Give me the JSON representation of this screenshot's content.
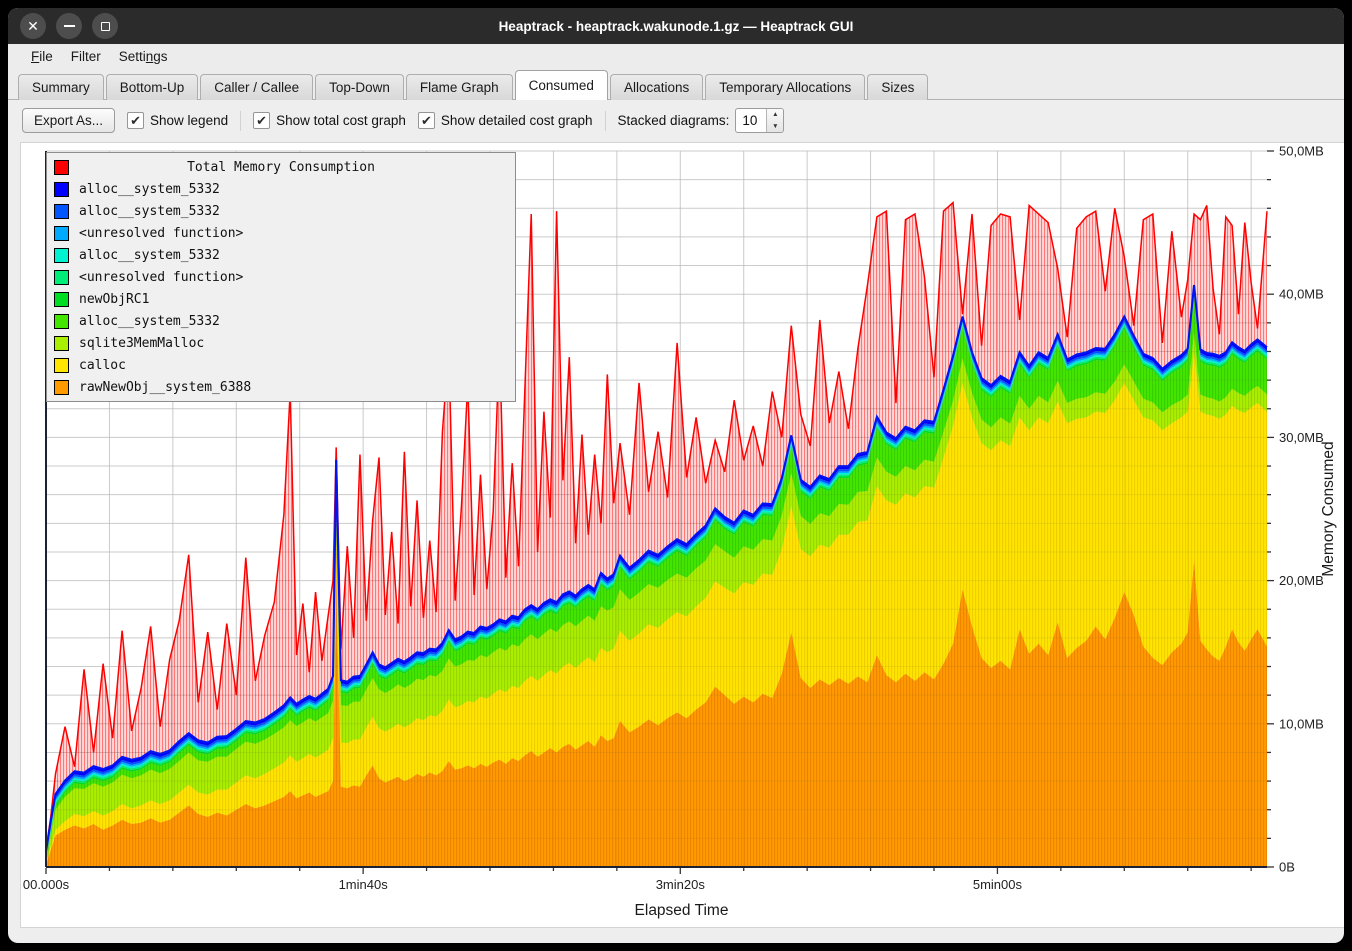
{
  "window": {
    "title": "Heaptrack - heaptrack.wakunode.1.gz — Heaptrack GUI",
    "controls": {
      "close": "close",
      "minimize": "minimize",
      "maximize": "maximize"
    }
  },
  "menu": {
    "items": [
      {
        "label": "File",
        "u": 0
      },
      {
        "label": "Filter",
        "u": -1
      },
      {
        "label": "Settings",
        "u": 5
      }
    ]
  },
  "tabs": [
    {
      "label": "Summary",
      "active": false
    },
    {
      "label": "Bottom-Up",
      "active": false
    },
    {
      "label": "Caller / Callee",
      "active": false
    },
    {
      "label": "Top-Down",
      "active": false
    },
    {
      "label": "Flame Graph",
      "active": false
    },
    {
      "label": "Consumed",
      "active": true
    },
    {
      "label": "Allocations",
      "active": false
    },
    {
      "label": "Temporary Allocations",
      "active": false
    },
    {
      "label": "Sizes",
      "active": false
    }
  ],
  "toolbar": {
    "export_label": "Export As...",
    "checkboxes": [
      {
        "label": "Show legend",
        "checked": true
      },
      {
        "label": "Show total cost graph",
        "checked": true
      },
      {
        "label": "Show detailed cost graph",
        "checked": true
      }
    ],
    "stacked_label": "Stacked diagrams:",
    "stacked_value": "10"
  },
  "chart_data": {
    "type": "area",
    "title": "Total Memory Consumption",
    "xlabel": "Elapsed Time",
    "ylabel": "Memory Consumed",
    "xlim": [
      0,
      385
    ],
    "ylim": [
      0,
      50
    ],
    "minor_x_step": 20,
    "minor_y_step": 2,
    "grid": true,
    "legend_position": "top-left",
    "x_ticks": [
      {
        "t": 0,
        "label": "00.000s"
      },
      {
        "t": 100,
        "label": "1min40s"
      },
      {
        "t": 200,
        "label": "3min20s"
      },
      {
        "t": 300,
        "label": "5min00s"
      }
    ],
    "y_ticks": [
      {
        "v": 0,
        "label": "0B"
      },
      {
        "v": 10,
        "label": "10,0MB"
      },
      {
        "v": 20,
        "label": "20,0MB"
      },
      {
        "v": 30,
        "label": "30,0MB"
      },
      {
        "v": 40,
        "label": "40,0MB"
      },
      {
        "v": 50,
        "label": "50,0MB"
      }
    ],
    "legend": [
      {
        "label": "Total Memory Consumption",
        "color": "#ff0000"
      },
      {
        "label": "alloc__system_5332",
        "color": "#0000ff"
      },
      {
        "label": "alloc__system_5332",
        "color": "#0055ff"
      },
      {
        "label": "<unresolved function>",
        "color": "#00aaff"
      },
      {
        "label": "alloc__system_5332",
        "color": "#00f2d0"
      },
      {
        "label": "<unresolved function>",
        "color": "#00ee77"
      },
      {
        "label": "newObjRC1",
        "color": "#00dd22"
      },
      {
        "label": "alloc__system_5332",
        "color": "#44e600"
      },
      {
        "label": "sqlite3MemMalloc",
        "color": "#aaee00"
      },
      {
        "label": "calloc",
        "color": "#ffe500"
      },
      {
        "label": "rawNewObj__system_6388",
        "color": "#ff9a00"
      }
    ],
    "t": [
      0,
      1.5,
      3,
      6,
      9,
      12,
      15,
      18,
      21,
      24,
      27,
      30,
      33,
      36,
      39,
      42,
      45,
      48,
      51,
      54,
      57,
      60,
      63,
      66,
      69,
      72,
      75,
      77,
      79,
      81,
      83,
      85,
      87,
      89,
      90.5,
      91.5,
      93,
      95,
      97,
      99,
      101,
      103,
      105,
      107,
      109,
      111,
      113,
      115,
      117,
      119,
      121,
      123,
      125,
      127,
      129,
      131,
      133,
      135,
      137,
      139,
      141,
      143,
      145,
      147,
      149,
      151,
      153,
      155,
      157,
      159,
      161,
      163,
      165,
      167,
      169,
      171,
      173,
      175,
      177,
      179,
      181,
      184,
      187,
      190,
      193,
      196,
      199,
      202,
      205,
      208,
      211,
      214,
      217,
      220,
      223,
      226,
      229,
      232,
      235,
      238,
      241,
      244,
      247,
      250,
      253,
      256,
      259,
      262,
      265,
      268,
      271,
      274,
      277,
      280,
      283,
      286,
      289,
      292,
      295,
      298,
      301,
      304,
      307,
      310,
      313,
      316,
      319,
      322,
      325,
      328,
      331,
      334,
      337,
      340,
      343,
      346,
      349,
      352,
      355,
      358,
      360,
      362,
      364,
      366,
      368,
      370,
      372,
      374,
      376,
      378,
      380,
      382,
      385
    ],
    "bands": [
      {
        "name": "rawNewObj__system_6388",
        "color": "#ff9a00",
        "stripe": "#ee8500",
        "values": [
          0.15,
          1.2,
          2.2,
          2.6,
          2.9,
          2.7,
          3.0,
          2.6,
          2.9,
          3.3,
          3.0,
          3.1,
          3.4,
          3.1,
          3.3,
          3.8,
          4.3,
          3.7,
          3.5,
          3.8,
          3.6,
          4.0,
          4.4,
          4.1,
          4.3,
          4.6,
          4.9,
          5.3,
          4.8,
          5.0,
          5.2,
          4.9,
          5.1,
          5.3,
          6.0,
          20.0,
          5.6,
          5.5,
          5.7,
          5.6,
          6.4,
          7.1,
          6.2,
          5.9,
          6.1,
          6.3,
          6.0,
          6.2,
          6.5,
          6.3,
          6.6,
          6.4,
          6.7,
          7.4,
          6.8,
          6.9,
          7.1,
          6.9,
          7.2,
          7.0,
          7.3,
          7.5,
          7.2,
          7.6,
          7.4,
          7.8,
          8.1,
          7.7,
          8.0,
          8.3,
          8.0,
          8.4,
          8.6,
          8.2,
          8.5,
          8.8,
          8.4,
          9.2,
          8.8,
          9.0,
          10.2,
          9.4,
          9.8,
          10.3,
          9.9,
          10.4,
          10.8,
          10.4,
          11.0,
          11.5,
          12.6,
          12.0,
          11.4,
          11.9,
          11.5,
          12.1,
          11.8,
          13.5,
          16.4,
          13.2,
          12.5,
          13.1,
          12.7,
          13.2,
          12.8,
          13.3,
          12.9,
          14.8,
          13.4,
          12.9,
          13.5,
          13.0,
          13.6,
          13.1,
          14.2,
          15.6,
          19.4,
          16.8,
          14.6,
          13.9,
          14.4,
          13.8,
          16.6,
          14.9,
          15.6,
          14.8,
          17.1,
          14.6,
          15.3,
          15.8,
          16.8,
          15.9,
          17.4,
          19.2,
          17.6,
          15.4,
          14.6,
          14.1,
          15.0,
          15.6,
          16.4,
          21.4,
          15.8,
          15.2,
          14.7,
          14.4,
          15.4,
          16.6,
          15.7,
          15.1,
          15.9,
          16.6,
          15.4
        ]
      },
      {
        "name": "calloc",
        "color": "#ffe500",
        "stripe": "#efce00",
        "values": [
          0.05,
          0.2,
          0.4,
          0.6,
          0.8,
          0.85,
          0.9,
          1.0,
          1.0,
          1.1,
          1.1,
          1.2,
          1.25,
          1.3,
          1.35,
          1.4,
          1.45,
          1.5,
          1.55,
          1.6,
          1.8,
          1.9,
          2.0,
          2.1,
          2.2,
          2.3,
          2.4,
          2.5,
          2.55,
          2.6,
          2.7,
          2.75,
          2.8,
          2.9,
          3.0,
          3.2,
          3.1,
          3.15,
          3.2,
          3.3,
          3.35,
          3.4,
          3.5,
          3.55,
          3.6,
          3.7,
          3.75,
          3.8,
          3.9,
          3.95,
          4.0,
          4.1,
          4.2,
          4.3,
          4.35,
          4.4,
          4.5,
          4.6,
          4.7,
          4.75,
          4.8,
          4.9,
          5.0,
          5.05,
          5.1,
          5.2,
          5.25,
          5.3,
          5.4,
          5.45,
          5.5,
          5.6,
          5.65,
          5.7,
          5.8,
          5.85,
          5.9,
          6.1,
          6.2,
          6.25,
          6.3,
          6.4,
          6.5,
          6.65,
          6.8,
          6.9,
          7.0,
          7.1,
          7.2,
          7.3,
          7.35,
          7.5,
          7.7,
          8.0,
          8.2,
          8.4,
          8.6,
          8.7,
          8.8,
          9.0,
          9.2,
          9.4,
          9.6,
          10.0,
          10.4,
          10.8,
          11.3,
          11.8,
          12.2,
          12.4,
          12.6,
          12.8,
          13.0,
          13.4,
          14.4,
          15.2,
          14.4,
          14.6,
          15.0,
          15.2,
          15.4,
          15.6,
          14.8,
          15.6,
          15.8,
          16.2,
          15.4,
          16.4,
          16.0,
          15.6,
          15.0,
          15.8,
          15.2,
          14.6,
          15.0,
          16.0,
          16.6,
          16.4,
          16.0,
          15.8,
          15.4,
          14.5,
          16.0,
          16.4,
          16.8,
          16.9,
          16.2,
          15.6,
          16.2,
          16.6,
          16.2,
          15.8,
          16.4
        ]
      },
      {
        "name": "sqlite3MemMalloc",
        "color": "#aaee00",
        "stripe": "#99d600",
        "values": [
          0.05,
          0.8,
          1.4,
          1.7,
          1.8,
          1.9,
          1.95,
          2.0,
          2.0,
          2.05,
          2.1,
          2.1,
          2.15,
          2.15,
          2.2,
          2.2,
          2.25,
          2.25,
          2.3,
          2.3,
          2.3,
          2.35,
          2.35,
          2.4,
          2.4,
          2.4,
          2.45,
          2.45,
          2.5,
          2.5,
          2.5,
          2.5,
          2.55,
          2.55,
          2.6,
          2.8,
          2.6,
          2.6,
          2.65,
          2.65,
          2.65,
          2.7,
          2.7,
          2.7,
          2.7,
          2.75,
          2.75,
          2.75,
          2.75,
          2.8,
          2.8,
          2.8,
          2.8,
          2.85,
          2.85,
          2.85,
          2.85,
          2.9,
          2.9,
          2.9,
          2.9,
          2.9,
          2.9,
          2.9,
          2.9,
          2.9,
          2.9,
          2.9,
          2.9,
          2.9,
          2.9,
          2.9,
          2.9,
          2.9,
          2.9,
          2.9,
          2.9,
          2.9,
          2.9,
          2.9,
          2.9,
          2.85,
          2.85,
          2.8,
          2.8,
          2.75,
          2.7,
          2.7,
          2.65,
          2.6,
          2.6,
          2.55,
          2.5,
          2.5,
          2.45,
          2.4,
          2.4,
          2.35,
          2.3,
          2.3,
          2.25,
          2.2,
          2.2,
          2.15,
          2.1,
          2.1,
          2.05,
          2.0,
          2.0,
          1.95,
          1.9,
          1.9,
          1.85,
          1.8,
          1.8,
          1.75,
          1.7,
          1.7,
          1.65,
          1.6,
          1.6,
          1.55,
          1.5,
          1.5,
          1.5,
          1.45,
          1.45,
          1.4,
          1.4,
          1.4,
          1.35,
          1.35,
          1.3,
          1.3,
          1.3,
          1.3,
          1.25,
          1.25,
          1.25,
          1.2,
          1.2,
          1.4,
          1.2,
          1.2,
          1.2,
          1.2,
          1.2,
          1.2,
          1.2,
          1.2,
          1.2,
          1.2,
          1.2
        ]
      },
      {
        "name": "alloc__system_5332",
        "color": "#44e600",
        "stripe": "#38cf00",
        "values": [
          0.03,
          0.15,
          0.25,
          0.3,
          0.35,
          0.3,
          0.35,
          0.4,
          0.35,
          0.4,
          0.45,
          0.4,
          0.45,
          0.5,
          0.45,
          0.55,
          0.5,
          0.55,
          0.5,
          0.55,
          0.6,
          0.55,
          0.6,
          0.65,
          0.6,
          0.65,
          0.7,
          0.75,
          0.7,
          0.75,
          0.7,
          0.75,
          0.8,
          0.85,
          0.9,
          1.6,
          0.9,
          0.85,
          0.9,
          0.95,
          0.9,
          0.95,
          0.9,
          0.95,
          1.0,
          0.95,
          1.0,
          1.05,
          1.0,
          1.05,
          1.0,
          1.05,
          1.1,
          1.15,
          1.05,
          1.1,
          1.15,
          1.1,
          1.15,
          1.2,
          1.1,
          1.15,
          1.2,
          1.15,
          1.2,
          1.25,
          1.2,
          1.25,
          1.3,
          1.2,
          1.25,
          1.3,
          1.25,
          1.3,
          1.35,
          1.3,
          1.35,
          1.5,
          1.4,
          1.45,
          1.5,
          1.4,
          1.45,
          1.5,
          1.45,
          1.5,
          1.55,
          1.5,
          1.55,
          1.6,
          1.65,
          1.55,
          1.6,
          1.65,
          1.6,
          1.65,
          1.7,
          1.75,
          1.8,
          1.7,
          1.75,
          1.8,
          1.75,
          1.8,
          1.85,
          1.8,
          1.9,
          2.0,
          1.9,
          1.85,
          1.9,
          1.95,
          1.9,
          1.95,
          2.1,
          2.3,
          2.1,
          2.0,
          2.05,
          2.1,
          2.05,
          2.1,
          2.2,
          2.15,
          2.2,
          2.25,
          2.4,
          2.2,
          2.25,
          2.3,
          2.25,
          2.3,
          2.45,
          2.5,
          2.35,
          2.3,
          2.25,
          2.2,
          2.25,
          2.3,
          2.35,
          2.5,
          2.3,
          2.25,
          2.3,
          2.35,
          2.3,
          2.4,
          2.35,
          2.3,
          2.35,
          2.4,
          2.45
        ]
      }
    ],
    "thin_bands": [
      {
        "name": "newObjRC1",
        "color": "#00dd22",
        "th": 0.12
      },
      {
        "name": "<unresolved function>",
        "color": "#00ee77",
        "th": 0.12
      },
      {
        "name": "alloc__system_5332",
        "color": "#00f2d0",
        "th": 0.12
      },
      {
        "name": "<unresolved function>",
        "color": "#00aaff",
        "th": 0.12
      },
      {
        "name": "alloc__system_5332",
        "color": "#0055ff",
        "th": 0.15
      },
      {
        "name": "alloc__system_5332",
        "color": "#0000ff",
        "th": 0.21
      }
    ],
    "total": {
      "name": "Total Memory Consumption",
      "color": "#ff0000",
      "values": [
        1.2,
        3.5,
        6.5,
        9.8,
        7.0,
        13.8,
        8.0,
        14.2,
        9.0,
        16.5,
        9.5,
        12.5,
        16.8,
        9.8,
        14.5,
        17.2,
        21.8,
        11.5,
        16.4,
        11.0,
        17.0,
        12.0,
        21.6,
        13.0,
        16.2,
        18.5,
        24.6,
        33.2,
        14.8,
        18.4,
        13.6,
        19.2,
        14.4,
        17.6,
        20.0,
        29.3,
        15.2,
        22.4,
        16.0,
        28.8,
        17.2,
        24.2,
        28.6,
        17.6,
        23.4,
        17.0,
        29.0,
        18.2,
        25.6,
        17.4,
        22.8,
        17.8,
        30.4,
        36.3,
        18.6,
        25.2,
        33.8,
        19.0,
        27.4,
        19.4,
        24.8,
        36.6,
        20.2,
        28.2,
        21.0,
        33.4,
        45.6,
        22.0,
        31.8,
        24.4,
        45.8,
        27.0,
        35.6,
        22.6,
        30.2,
        23.2,
        28.8,
        24.0,
        34.4,
        25.4,
        29.6,
        24.6,
        33.8,
        26.2,
        30.4,
        25.8,
        36.6,
        27.2,
        31.4,
        26.8,
        29.8,
        27.6,
        32.6,
        28.4,
        30.8,
        28.0,
        33.2,
        30.0,
        37.8,
        31.6,
        29.4,
        38.2,
        31.0,
        34.6,
        30.6,
        36.2,
        40.6,
        45.4,
        45.8,
        32.4,
        45.2,
        45.6,
        41.2,
        34.2,
        45.8,
        46.4,
        38.6,
        45.6,
        36.4,
        44.8,
        45.6,
        45.4,
        38.2,
        46.2,
        45.6,
        45.0,
        41.8,
        37.0,
        44.6,
        45.4,
        45.8,
        40.2,
        46.0,
        42.6,
        37.8,
        45.2,
        45.6,
        36.6,
        44.4,
        38.4,
        41.0,
        45.6,
        45.2,
        46.2,
        40.4,
        37.2,
        45.4,
        44.8,
        38.6,
        45.0,
        40.8,
        37.6,
        45.8
      ]
    }
  }
}
